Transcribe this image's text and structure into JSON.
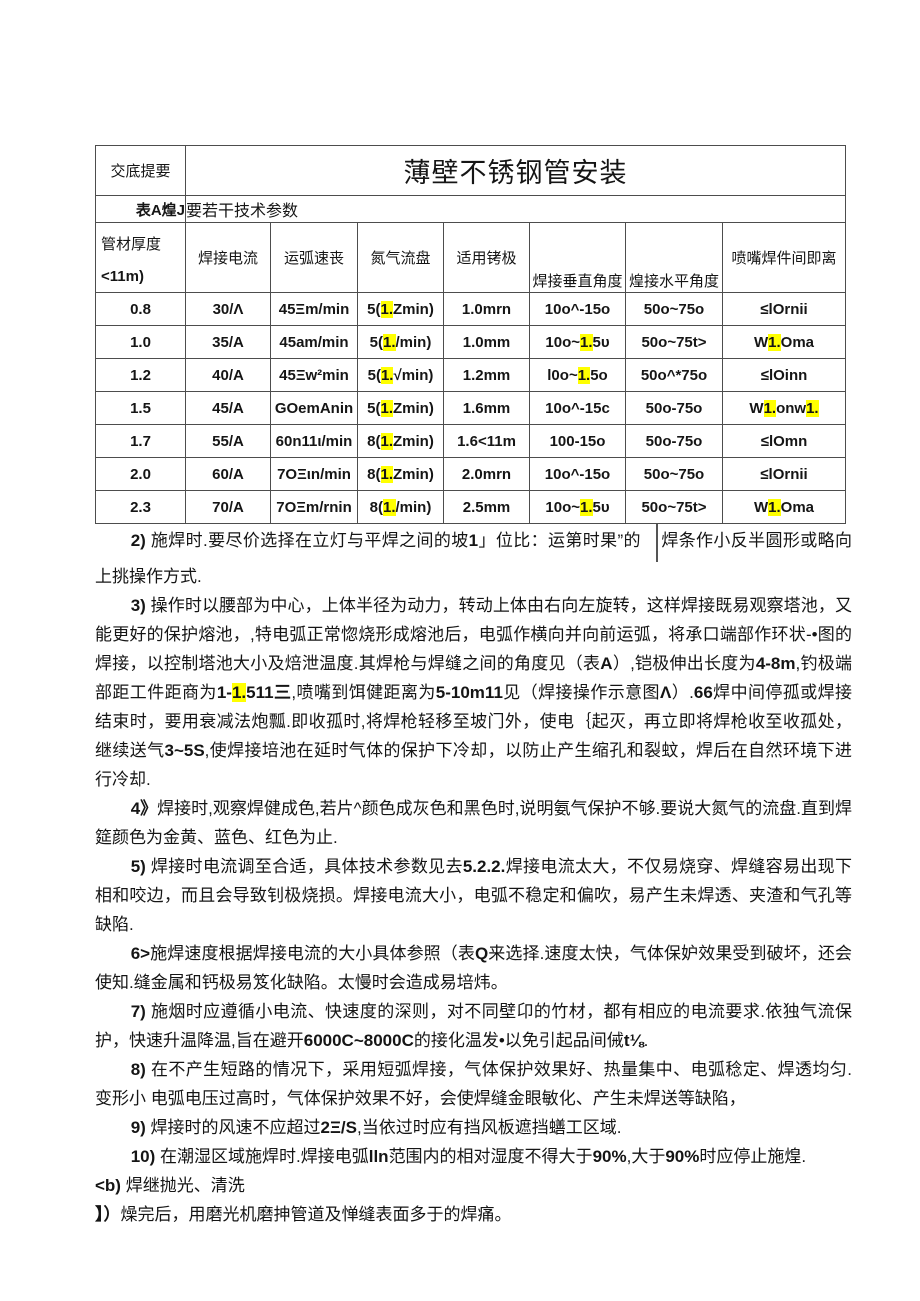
{
  "header": {
    "label": "交底提要",
    "title": "薄壁不锈钢管安装",
    "ref": "表A煌J",
    "caption": "要若干技术参数"
  },
  "table": {
    "columns": [
      {
        "line1": "管材厚度",
        "line2": "<11m)"
      },
      "焊接电流",
      "运弧速丧",
      "氮气流盘",
      "适用铐极",
      "焊接垂直角度",
      "煌接水平角度",
      "喷嘴焊件间即离"
    ],
    "highlight_color": "#ffff00",
    "rows": [
      [
        [
          {
            "t": "0.8"
          }
        ],
        [
          {
            "t": "30/Λ"
          }
        ],
        [
          {
            "t": "45Ξm/min"
          }
        ],
        [
          {
            "t": "5("
          },
          {
            "t": "1.",
            "h": true
          },
          {
            "t": "Zmin)"
          }
        ],
        [
          {
            "t": "1.0mrn"
          }
        ],
        [
          {
            "t": "10o^-15o"
          }
        ],
        [
          {
            "t": "50o~75o"
          }
        ],
        [
          {
            "t": "≤lOrnii"
          }
        ]
      ],
      [
        [
          {
            "t": "1.0"
          }
        ],
        [
          {
            "t": "35/A"
          }
        ],
        [
          {
            "t": "45am/min"
          }
        ],
        [
          {
            "t": "5("
          },
          {
            "t": "1.",
            "h": true
          },
          {
            "t": "/min)"
          }
        ],
        [
          {
            "t": "1.0mm"
          }
        ],
        [
          {
            "t": "10o~"
          },
          {
            "t": "1.",
            "h": true
          },
          {
            "t": "5υ"
          }
        ],
        [
          {
            "t": "50o~75t>"
          }
        ],
        [
          {
            "t": "W"
          },
          {
            "t": "1.",
            "h": true
          },
          {
            "t": "Oma"
          }
        ]
      ],
      [
        [
          {
            "t": "1.2"
          }
        ],
        [
          {
            "t": "40/A"
          }
        ],
        [
          {
            "t": "45Ξw²min"
          }
        ],
        [
          {
            "t": "5("
          },
          {
            "t": "1.",
            "h": true
          },
          {
            "t": "√min)"
          }
        ],
        [
          {
            "t": "1.2mm"
          }
        ],
        [
          {
            "t": "l0o~"
          },
          {
            "t": "1.",
            "h": true
          },
          {
            "t": "5o"
          }
        ],
        [
          {
            "t": "50o^*75o"
          }
        ],
        [
          {
            "t": "≤lOinn"
          }
        ]
      ],
      [
        [
          {
            "t": "1.5"
          }
        ],
        [
          {
            "t": "45/A"
          }
        ],
        [
          {
            "t": "GOemAnin"
          }
        ],
        [
          {
            "t": "5("
          },
          {
            "t": "1.",
            "h": true
          },
          {
            "t": "Zmin)"
          }
        ],
        [
          {
            "t": "1.6mm"
          }
        ],
        [
          {
            "t": "10o^-15c"
          }
        ],
        [
          {
            "t": "50o-75o"
          }
        ],
        [
          {
            "t": "W"
          },
          {
            "t": "1.",
            "h": true
          },
          {
            "t": "onw"
          },
          {
            "t": "1.",
            "h": true
          }
        ]
      ],
      [
        [
          {
            "t": "1.7"
          }
        ],
        [
          {
            "t": "55/A"
          }
        ],
        [
          {
            "t": "60n11ι/min"
          }
        ],
        [
          {
            "t": "8("
          },
          {
            "t": "1.",
            "h": true
          },
          {
            "t": "Zmin)"
          }
        ],
        [
          {
            "t": "1.6<11m"
          }
        ],
        [
          {
            "t": "100-15o"
          }
        ],
        [
          {
            "t": "50o-75o"
          }
        ],
        [
          {
            "t": "≤lOmn"
          }
        ]
      ],
      [
        [
          {
            "t": "2.0"
          }
        ],
        [
          {
            "t": "60/A"
          }
        ],
        [
          {
            "t": "7OΞιn/min"
          }
        ],
        [
          {
            "t": "8("
          },
          {
            "t": "1.",
            "h": true
          },
          {
            "t": "Zmin)"
          }
        ],
        [
          {
            "t": "2.0mrn"
          }
        ],
        [
          {
            "t": "10o^-15o"
          }
        ],
        [
          {
            "t": "50o~75o"
          }
        ],
        [
          {
            "t": "≤lOrnii"
          }
        ]
      ],
      [
        [
          {
            "t": "2.3"
          }
        ],
        [
          {
            "t": "70/A"
          }
        ],
        [
          {
            "t": "7OΞm/rnin"
          }
        ],
        [
          {
            "t": "8("
          },
          {
            "t": "1.",
            "h": true
          },
          {
            "t": "/min)"
          }
        ],
        [
          {
            "t": "2.5mm"
          }
        ],
        [
          {
            "t": "10o~"
          },
          {
            "t": "1.",
            "h": true
          },
          {
            "t": "5υ"
          }
        ],
        [
          {
            "t": "50o~75t>"
          }
        ],
        [
          {
            "t": "W"
          },
          {
            "t": "1.",
            "h": true
          },
          {
            "t": "Oma"
          }
        ]
      ]
    ]
  },
  "paragraphs": [
    {
      "name": "para-2",
      "indent": true,
      "segments": [
        {
          "t": "2) ",
          "b": true
        },
        {
          "t": "施焊时.要尽价选择在立灯与平焊之间的坡"
        },
        {
          "t": "1",
          "b": true
        },
        {
          "t": "」位比：运第时果”的 "
        },
        {
          "d": true
        },
        {
          "t": "焊条作小反半圆形或略向上挑操作方式."
        }
      ]
    },
    {
      "name": "para-3",
      "indent": true,
      "segments": [
        {
          "t": "3) ",
          "b": true
        },
        {
          "t": "操作时以腰部为中心，上体半径为动力，转动上体由右向左旋转，这样焊接既易观察塔池，又能更好的保护熔池，,特电弧正常惚烧形成熔池后，电弧作横向并向前运弧，将承口端部作环状-•图的焊接，以控制塔池大小及焙泄温度.其焊枪与焊缝之间的角度见（表"
        },
        {
          "t": "A",
          "b": true
        },
        {
          "t": "）,铠极伸出长度为"
        },
        {
          "t": "4-8m",
          "b": true
        },
        {
          "t": ",钓极端部距工件距商为"
        },
        {
          "t": "1-",
          "b": true
        },
        {
          "t": "1.",
          "b": true,
          "h": true
        },
        {
          "t": "511三",
          "b": true
        },
        {
          "t": ",喷嘴到饵健距离为"
        },
        {
          "t": "5-10m11",
          "b": true
        },
        {
          "t": "见（焊接操作示意图"
        },
        {
          "t": "Λ",
          "b": true
        },
        {
          "t": "）."
        },
        {
          "t": "66",
          "b": true
        },
        {
          "t": "焊中间停孤或焊接结束时，要用衰减法炮瓢.即收孤时,将焊枪轻移至坡门外，使电｛起灭，再立即将焊枪收至收孤处，继续送气"
        },
        {
          "t": "3~5S",
          "b": true
        },
        {
          "t": ",使焊接培池在延时气体的保护下冷却，以防止产生缩孔和裂蚊，焊后在自然环境下进行冷却."
        }
      ]
    },
    {
      "name": "para-4",
      "indent": true,
      "segments": [
        {
          "t": "4》",
          "b": true
        },
        {
          "t": "焊接时,观察焊健成色,若片^颜色成灰色和黑色时,说明氨气保护不够.要说大氮气的流盘.直到焊筵颜色为金黄、蓝色、红色为止."
        }
      ]
    },
    {
      "name": "para-5",
      "indent": true,
      "segments": [
        {
          "t": "5) ",
          "b": true
        },
        {
          "t": "焊接时电流调至合适，具体技术参数见去"
        },
        {
          "t": "5.2.2.",
          "b": true
        },
        {
          "t": "焊接电流太大，不仅易烧穿、焊缝容易出现下相和咬边，而且会导致钊极烧损。焊接电流大小，电弧不稳定和偏吹，易产生未焊透、夹渣和气孔等缺陷."
        }
      ]
    },
    {
      "name": "para-6",
      "indent": true,
      "segments": [
        {
          "t": "6>",
          "b": true
        },
        {
          "t": "施焊速度根据焊接电流的大小具体参照（表"
        },
        {
          "t": "Q",
          "b": true
        },
        {
          "t": "来选择.速度太快，气体保妒效果受到破坏，还会使知.缝金属和钙极易笈化缺陷。太慢时会造成易培炜。"
        }
      ]
    },
    {
      "name": "para-7",
      "indent": true,
      "segments": [
        {
          "t": "7) ",
          "b": true
        },
        {
          "t": "施烟时应遵循小电流、快速度的深则，对不同壁卬的竹材，都有相应的电流要求.依独气流保护，快速升温降温,旨在避开"
        },
        {
          "t": "6000C~8000C",
          "b": true
        },
        {
          "t": "的接化温发•以免引起品间㑘"
        },
        {
          "t": "t⅛",
          "b": true
        },
        {
          "t": "."
        }
      ]
    },
    {
      "name": "para-8",
      "indent": true,
      "segments": [
        {
          "t": "8) ",
          "b": true
        },
        {
          "t": "在不产生短路的情况下，采用短弧焊接，气体保护效果好、热量集中、电弧稔定、焊透均匀.变形小 电弧电压过高时，气体保护效果不好，会使焊缝金眼敏化、产生未焊送等缺陷，"
        }
      ]
    },
    {
      "name": "para-9",
      "indent": true,
      "segments": [
        {
          "t": "9) ",
          "b": true
        },
        {
          "t": "焊接时的风速不应超过"
        },
        {
          "t": "2Ξ/S",
          "b": true
        },
        {
          "t": ",当依过时应有挡风板遮挡蟮工区域."
        }
      ]
    },
    {
      "name": "para-10",
      "indent": true,
      "segments": [
        {
          "t": "10) ",
          "b": true
        },
        {
          "t": "在潮湿区域施焊时.焊接电弧"
        },
        {
          "t": "lln",
          "b": true
        },
        {
          "t": "范围内的相对湿度不得大于"
        },
        {
          "t": "90%",
          "b": true
        },
        {
          "t": ",大于"
        },
        {
          "t": "90%",
          "b": true
        },
        {
          "t": "时应停止施煌."
        }
      ]
    },
    {
      "name": "section-b-heading",
      "indent": false,
      "segments": [
        {
          "t": "<b) ",
          "b": true
        },
        {
          "t": "焊继抛光、清洗"
        }
      ]
    },
    {
      "name": "para-polish-1",
      "indent": false,
      "segments": [
        {
          "t": "】）",
          "b": true
        },
        {
          "t": "燥完后，用磨光机磨抻管道及惮缝表面多于的焊痛。"
        }
      ]
    }
  ]
}
